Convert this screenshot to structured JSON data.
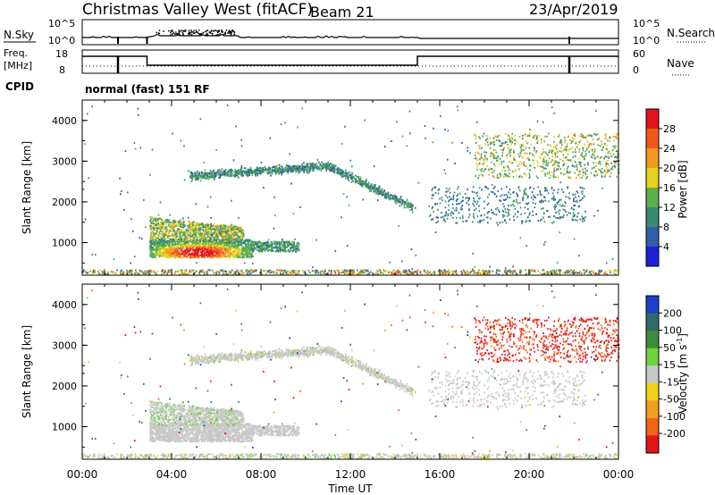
{
  "header": {
    "title": "Christmas Valley West (fitACF)",
    "beam": "Beam 21",
    "date": "23/Apr/2019"
  },
  "params": {
    "nsky_label": "N.Sky",
    "nsky_tick_top": "10^5",
    "nsky_tick_bottom": "10^0",
    "nsearch_label": "N.Search",
    "freq_label_1": "Freq.",
    "freq_label_2": "[MHz]",
    "freq_tick_top": "18",
    "freq_tick_bottom": "8",
    "nave_label": "Nave",
    "nave_tick_top": "60",
    "nave_tick_bottom": "0",
    "cpid_label": "CPID",
    "cpid_value": "normal (fast) 151 RF"
  },
  "chart_data": [
    {
      "type": "heatmap",
      "ylabel": "Slant Range [km]",
      "yticks": [
        "1000",
        "2000",
        "3000",
        "4000"
      ],
      "ylim": [
        200,
        4500
      ],
      "colorbar_label": "Power [dB]",
      "colorbar_ticks": [
        "4",
        "8",
        "12",
        "16",
        "20",
        "24",
        "28"
      ],
      "colorbar_range": [
        0,
        32
      ],
      "colors": [
        "#1f1fd8",
        "#2e5fa8",
        "#3a8a73",
        "#5fae4c",
        "#e4d21e",
        "#f39a20",
        "#ef5a18",
        "#e3141a"
      ]
    },
    {
      "type": "heatmap",
      "ylabel": "Slant Range [km]",
      "yticks": [
        "1000",
        "2000",
        "3000",
        "4000"
      ],
      "ylim": [
        200,
        4500
      ],
      "colorbar_label": "Velocity [m s^-1]",
      "colorbar_ticks": [
        "200",
        "100",
        "50",
        "15",
        "-15",
        "-50",
        "-100",
        "-200"
      ],
      "colorbar_range": [
        -250,
        250
      ],
      "colors": [
        "#1f3fc8",
        "#2f6a6a",
        "#3f8c3f",
        "#6fd23f",
        "#c8c8c8",
        "#f0d21a",
        "#f3a020",
        "#f06418",
        "#e3141a"
      ]
    }
  ],
  "xaxis": {
    "label": "Time UT",
    "ticks": [
      "00:00",
      "04:00",
      "08:00",
      "12:00",
      "16:00",
      "20:00",
      "00:00"
    ],
    "range_hours": [
      0,
      24
    ]
  }
}
